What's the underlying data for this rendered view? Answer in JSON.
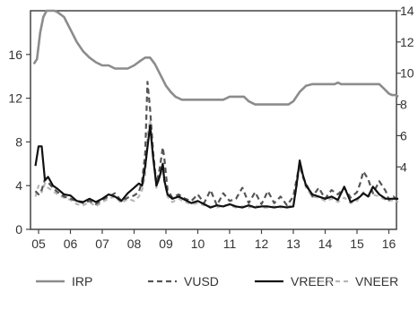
{
  "chart_data": {
    "type": "line",
    "x_ticks": [
      "05",
      "06",
      "07",
      "08",
      "09",
      "10",
      "11",
      "12",
      "13",
      "14",
      "15",
      "16"
    ],
    "left_axis": {
      "ticks": [
        0,
        4,
        8,
        12,
        16
      ],
      "range": [
        0,
        20
      ]
    },
    "right_axis": {
      "ticks": [
        4,
        6,
        8,
        10,
        12,
        14
      ],
      "range": [
        0,
        14
      ]
    },
    "grid": false,
    "legend_position": "bottom",
    "series": [
      {
        "name": "IRP",
        "axis": "right",
        "color": "#8c8c8c",
        "dash": "solid",
        "width": 2.6,
        "x": [
          2004.85,
          2004.95,
          2005.05,
          2005.15,
          2005.25,
          2005.35,
          2005.5,
          2005.6,
          2005.8,
          2006.0,
          2006.2,
          2006.4,
          2006.6,
          2006.8,
          2007.0,
          2007.2,
          2007.4,
          2007.6,
          2007.8,
          2008.0,
          2008.2,
          2008.35,
          2008.5,
          2008.65,
          2008.8,
          2009.0,
          2009.15,
          2009.3,
          2009.5,
          2009.8,
          2010.0,
          2010.3,
          2010.6,
          2010.8,
          2011.0,
          2011.3,
          2011.45,
          2011.6,
          2011.8,
          2012.0,
          2012.3,
          2012.5,
          2012.7,
          2012.85,
          2013.0,
          2013.2,
          2013.4,
          2013.6,
          2013.8,
          2014.0,
          2014.3,
          2014.4,
          2014.5,
          2014.7,
          2015.0,
          2015.2,
          2015.5,
          2015.7,
          2015.85,
          2016.0,
          2016.1,
          2016.2,
          2016.3
        ],
        "values": [
          10.6,
          10.9,
          12.6,
          13.6,
          14.0,
          14.0,
          14.0,
          13.9,
          13.6,
          12.8,
          12.0,
          11.4,
          11.0,
          10.7,
          10.5,
          10.5,
          10.3,
          10.3,
          10.3,
          10.5,
          10.8,
          11.0,
          11.0,
          10.6,
          10.0,
          9.2,
          8.8,
          8.5,
          8.3,
          8.3,
          8.3,
          8.3,
          8.3,
          8.3,
          8.5,
          8.5,
          8.5,
          8.2,
          8.0,
          8.0,
          8.0,
          8.0,
          8.0,
          8.0,
          8.2,
          8.8,
          9.2,
          9.3,
          9.3,
          9.3,
          9.3,
          9.4,
          9.3,
          9.3,
          9.3,
          9.3,
          9.3,
          9.3,
          9.0,
          8.7,
          8.6,
          8.6,
          8.5
        ]
      },
      {
        "name": "VUSD",
        "axis": "left",
        "color": "#555555",
        "dash": "6,4",
        "width": 2.2,
        "x": [
          2004.9,
          2005.0,
          2005.1,
          2005.2,
          2005.3,
          2005.45,
          2005.6,
          2005.8,
          2006.0,
          2006.2,
          2006.4,
          2006.6,
          2006.8,
          2007.0,
          2007.2,
          2007.4,
          2007.6,
          2007.8,
          2008.0,
          2008.15,
          2008.25,
          2008.35,
          2008.42,
          2008.5,
          2008.6,
          2008.7,
          2008.8,
          2008.9,
          2008.95,
          2009.05,
          2009.2,
          2009.4,
          2009.6,
          2009.8,
          2010.0,
          2010.2,
          2010.4,
          2010.6,
          2010.8,
          2011.0,
          2011.2,
          2011.4,
          2011.6,
          2011.8,
          2012.0,
          2012.2,
          2012.4,
          2012.6,
          2012.8,
          2013.0,
          2013.1,
          2013.2,
          2013.3,
          2013.4,
          2013.6,
          2013.8,
          2014.0,
          2014.2,
          2014.4,
          2014.6,
          2014.8,
          2015.0,
          2015.1,
          2015.2,
          2015.35,
          2015.5,
          2015.7,
          2015.9,
          2016.0,
          2016.15,
          2016.3
        ],
        "values": [
          3.5,
          3.2,
          3.6,
          4.6,
          4.3,
          3.8,
          3.4,
          3.0,
          2.8,
          2.6,
          2.4,
          2.6,
          2.3,
          2.7,
          3.0,
          3.3,
          2.6,
          2.9,
          3.1,
          3.4,
          4.4,
          7.0,
          13.5,
          11.0,
          7.0,
          4.2,
          5.5,
          7.5,
          6.5,
          3.6,
          2.9,
          3.2,
          2.8,
          2.6,
          3.2,
          2.4,
          3.6,
          2.2,
          3.3,
          2.6,
          2.8,
          3.8,
          2.4,
          3.4,
          2.3,
          3.5,
          2.4,
          3.0,
          2.2,
          3.0,
          4.5,
          6.0,
          4.8,
          4.2,
          3.0,
          3.8,
          2.8,
          3.6,
          3.2,
          3.8,
          2.9,
          3.4,
          4.2,
          5.3,
          4.6,
          3.3,
          4.4,
          3.5,
          2.7,
          3.0,
          2.6
        ]
      },
      {
        "name": "VREER",
        "axis": "left",
        "color": "#111111",
        "dash": "solid",
        "width": 2.2,
        "x": [
          2004.9,
          2005.0,
          2005.1,
          2005.2,
          2005.3,
          2005.45,
          2005.6,
          2005.8,
          2006.0,
          2006.2,
          2006.4,
          2006.6,
          2006.8,
          2007.0,
          2007.2,
          2007.4,
          2007.6,
          2007.8,
          2008.0,
          2008.15,
          2008.25,
          2008.35,
          2008.42,
          2008.5,
          2008.6,
          2008.7,
          2008.8,
          2008.9,
          2008.95,
          2009.05,
          2009.2,
          2009.4,
          2009.6,
          2009.8,
          2010.0,
          2010.2,
          2010.4,
          2010.6,
          2010.8,
          2011.0,
          2011.2,
          2011.4,
          2011.6,
          2011.8,
          2012.0,
          2012.2,
          2012.4,
          2012.6,
          2012.8,
          2013.0,
          2013.1,
          2013.2,
          2013.3,
          2013.4,
          2013.6,
          2013.8,
          2014.0,
          2014.2,
          2014.4,
          2014.6,
          2014.8,
          2015.0,
          2015.1,
          2015.2,
          2015.35,
          2015.5,
          2015.7,
          2015.9,
          2016.0,
          2016.15,
          2016.3
        ],
        "values": [
          5.8,
          7.6,
          7.6,
          4.5,
          4.8,
          4.0,
          3.7,
          3.2,
          3.1,
          2.6,
          2.5,
          2.8,
          2.5,
          2.8,
          3.2,
          3.0,
          2.6,
          3.3,
          3.8,
          4.2,
          4.0,
          5.8,
          7.5,
          9.5,
          6.5,
          4.0,
          4.8,
          6.0,
          4.5,
          3.2,
          2.8,
          3.0,
          2.7,
          2.4,
          2.6,
          2.3,
          2.0,
          2.2,
          2.1,
          2.3,
          2.1,
          2.0,
          2.2,
          2.0,
          2.1,
          2.1,
          2.0,
          2.1,
          2.0,
          2.1,
          4.0,
          6.3,
          5.0,
          4.0,
          3.2,
          3.0,
          2.8,
          3.0,
          2.7,
          3.9,
          2.5,
          2.8,
          3.0,
          3.3,
          3.0,
          3.9,
          3.2,
          2.8,
          2.8,
          2.8,
          2.8
        ]
      },
      {
        "name": "VNEER",
        "axis": "left",
        "color": "#b8b8b8",
        "dash": "5,4",
        "width": 2.2,
        "x": [
          2004.9,
          2005.0,
          2005.1,
          2005.2,
          2005.3,
          2005.45,
          2005.6,
          2005.8,
          2006.0,
          2006.2,
          2006.4,
          2006.6,
          2006.8,
          2007.0,
          2007.2,
          2007.4,
          2007.6,
          2007.8,
          2008.0,
          2008.15,
          2008.25,
          2008.35,
          2008.42,
          2008.5,
          2008.6,
          2008.7,
          2008.8,
          2008.9,
          2008.95,
          2009.05,
          2009.2,
          2009.4,
          2009.6,
          2009.8,
          2010.0,
          2010.2,
          2010.4,
          2010.6,
          2010.8,
          2011.0,
          2011.2,
          2011.4,
          2011.6,
          2011.8,
          2012.0,
          2012.2,
          2012.4,
          2012.6,
          2012.8,
          2013.0,
          2013.1,
          2013.2,
          2013.3,
          2013.4,
          2013.6,
          2013.8,
          2014.0,
          2014.2,
          2014.4,
          2014.6,
          2014.8,
          2015.0,
          2015.1,
          2015.2,
          2015.35,
          2015.5,
          2015.7,
          2015.9,
          2016.0,
          2016.15,
          2016.3
        ],
        "values": [
          3.0,
          4.0,
          3.4,
          4.2,
          3.8,
          3.5,
          3.2,
          2.9,
          2.7,
          2.3,
          2.2,
          2.5,
          2.1,
          2.5,
          2.8,
          3.0,
          2.4,
          2.8,
          2.6,
          3.0,
          3.6,
          5.0,
          8.5,
          10.0,
          6.8,
          3.8,
          4.8,
          5.5,
          4.4,
          3.0,
          2.5,
          2.8,
          2.5,
          2.3,
          2.4,
          2.2,
          2.1,
          2.0,
          2.2,
          2.2,
          2.0,
          2.1,
          2.0,
          2.2,
          2.0,
          2.0,
          2.1,
          2.0,
          2.1,
          2.2,
          3.8,
          5.8,
          4.8,
          3.8,
          3.0,
          2.9,
          2.6,
          2.8,
          2.5,
          2.9,
          2.4,
          2.6,
          3.0,
          3.4,
          3.0,
          3.2,
          3.0,
          2.7,
          2.6,
          2.7,
          2.5
        ]
      }
    ]
  }
}
